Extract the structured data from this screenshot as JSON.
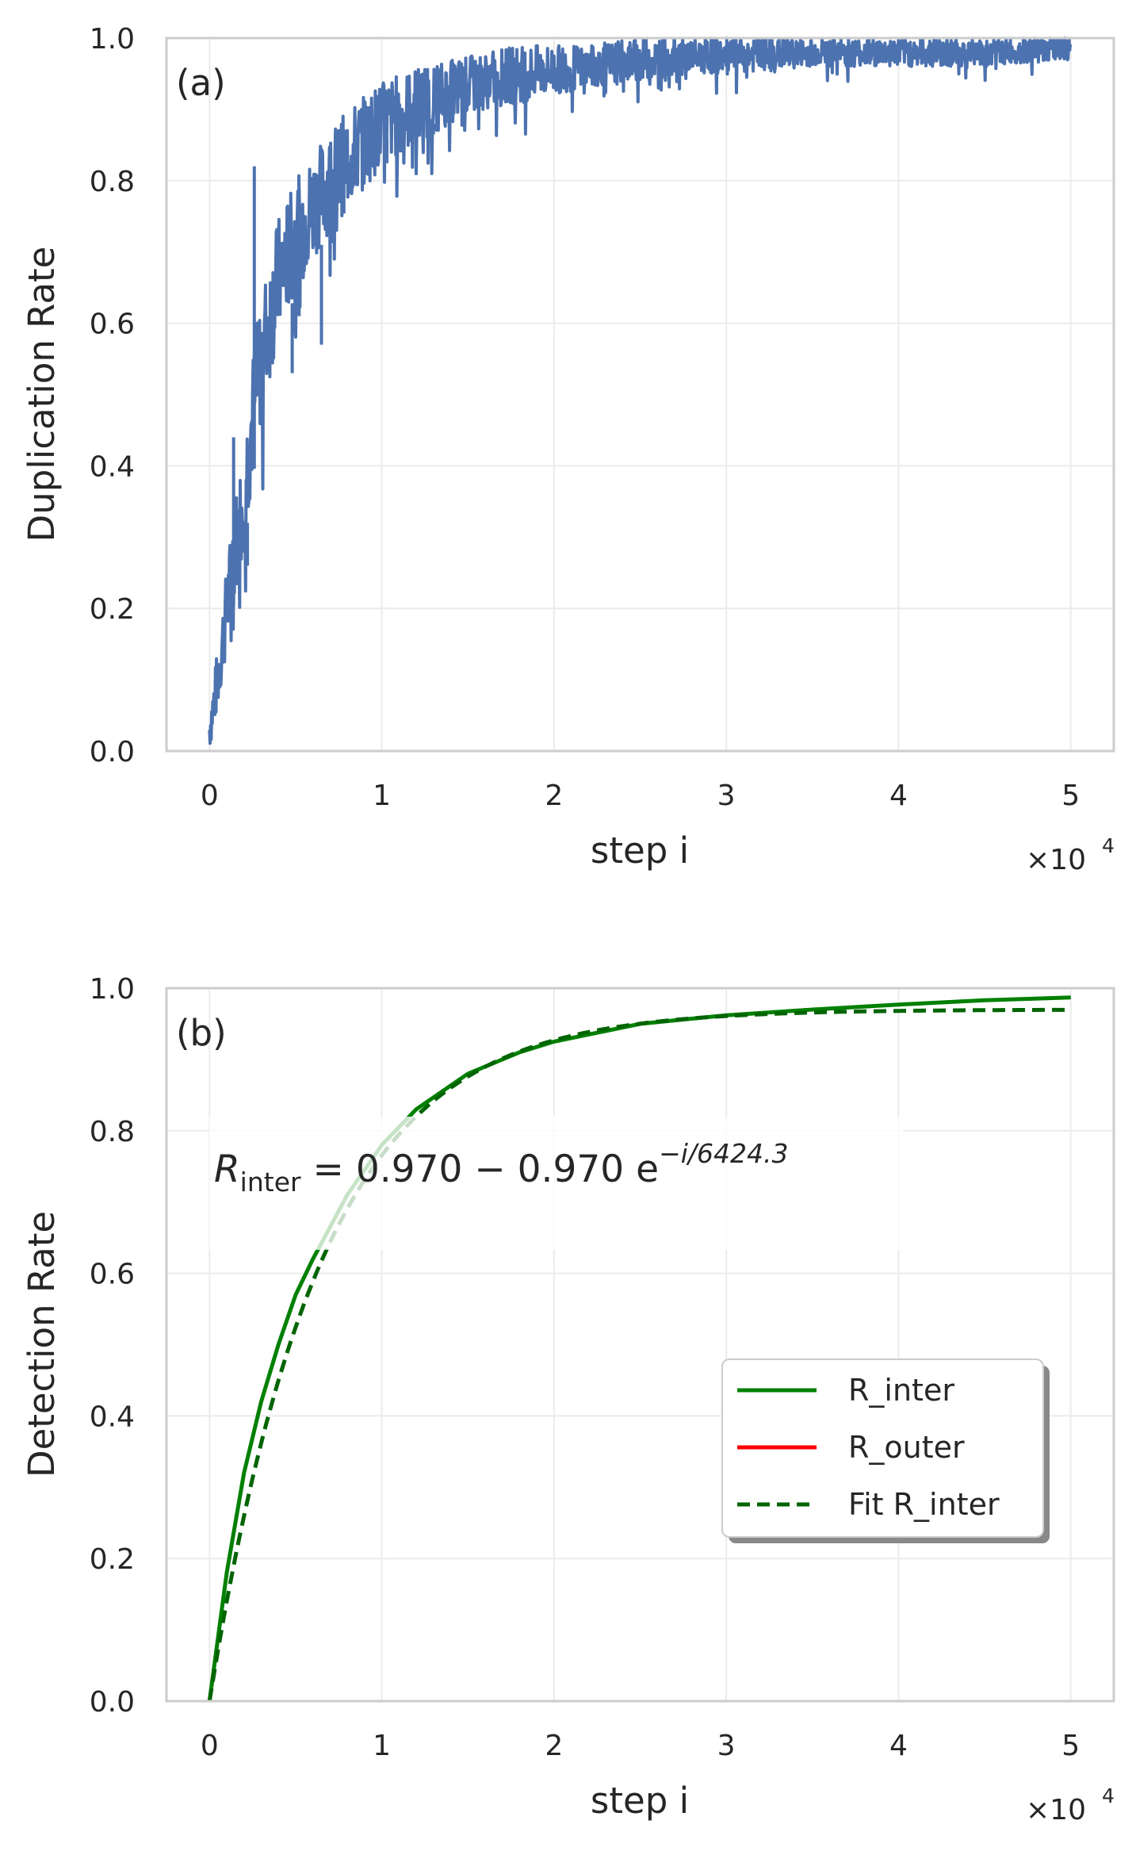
{
  "chart_data": [
    {
      "type": "line",
      "panel_label": "(a)",
      "xlabel": "step i",
      "ylabel": "Duplication Rate",
      "x_multiplier": {
        "base": "×10",
        "exponent": "4"
      },
      "xlim": [
        -2500,
        52500
      ],
      "ylim": [
        0,
        1.0
      ],
      "xticks": [
        0,
        10000,
        20000,
        30000,
        40000,
        50000
      ],
      "xtick_labels": [
        "0",
        "1",
        "2",
        "3",
        "4",
        "5"
      ],
      "yticks": [
        0,
        0.2,
        0.4,
        0.6,
        0.8,
        1.0
      ],
      "ytick_labels": [
        "0.0",
        "0.2",
        "0.4",
        "0.6",
        "0.8",
        "1.0"
      ],
      "grid": true,
      "series": [
        {
          "color": "#4c72b0",
          "noisy": true,
          "x": [
            0,
            500,
            1000,
            1500,
            2000,
            2500,
            3000,
            3500,
            4000,
            5000,
            6000,
            7000,
            8000,
            9000,
            10000,
            12000,
            14000,
            16000,
            18000,
            20000,
            22000,
            25000,
            28000,
            31000,
            35000,
            40000,
            45000,
            50000
          ],
          "y_low": [
            0.0,
            0.06,
            0.14,
            0.22,
            0.28,
            0.38,
            0.46,
            0.52,
            0.58,
            0.64,
            0.69,
            0.73,
            0.76,
            0.79,
            0.82,
            0.85,
            0.88,
            0.9,
            0.91,
            0.92,
            0.93,
            0.94,
            0.95,
            0.95,
            0.96,
            0.96,
            0.96,
            0.97
          ],
          "y_high": [
            0.06,
            0.15,
            0.26,
            0.36,
            0.44,
            0.56,
            0.64,
            0.7,
            0.75,
            0.8,
            0.84,
            0.87,
            0.9,
            0.92,
            0.94,
            0.96,
            0.97,
            0.98,
            0.99,
            0.99,
            0.99,
            1.0,
            1.0,
            1.0,
            1.0,
            1.0,
            1.0,
            1.0
          ],
          "spikes": [
            [
              2600,
              0.82
            ],
            [
              4800,
              0.53
            ],
            [
              6500,
              0.57
            ],
            [
              7800,
              0.86
            ],
            [
              10300,
              0.86
            ],
            [
              13000,
              0.88
            ],
            [
              2200,
              0.26
            ],
            [
              1400,
              0.44
            ],
            [
              5200,
              0.61
            ]
          ]
        }
      ]
    },
    {
      "type": "line",
      "panel_label": "(b)",
      "xlabel": "step i",
      "ylabel": "Detection Rate",
      "x_multiplier": {
        "base": "×10",
        "exponent": "4"
      },
      "xlim": [
        -2500,
        52500
      ],
      "ylim": [
        0,
        1.0
      ],
      "xticks": [
        0,
        10000,
        20000,
        30000,
        40000,
        50000
      ],
      "xtick_labels": [
        "0",
        "1",
        "2",
        "3",
        "4",
        "5"
      ],
      "yticks": [
        0,
        0.2,
        0.4,
        0.6,
        0.8,
        1.0
      ],
      "ytick_labels": [
        "0.0",
        "0.2",
        "0.4",
        "0.6",
        "0.8",
        "1.0"
      ],
      "grid": true,
      "equation": {
        "lhs": "R",
        "lhs_sub": "inter",
        "rhs": " = 0.970 − 0.970 e",
        "exponent": "−i/6424.3"
      },
      "legend_position": "center-right",
      "series": [
        {
          "name": "R_inter",
          "color": "#008000",
          "style": "solid",
          "x": [
            0,
            1000,
            2000,
            3000,
            4000,
            5000,
            6000,
            8000,
            10000,
            12000,
            15000,
            18000,
            20000,
            25000,
            30000,
            35000,
            40000,
            45000,
            50000
          ],
          "y": [
            0.0,
            0.18,
            0.32,
            0.42,
            0.5,
            0.57,
            0.62,
            0.71,
            0.78,
            0.83,
            0.88,
            0.91,
            0.925,
            0.95,
            0.962,
            0.97,
            0.977,
            0.983,
            0.987
          ]
        },
        {
          "name": "R_outer",
          "color": "#ff0000",
          "style": "solid",
          "x": [
            0,
            50000
          ],
          "y": [
            0.0,
            0.0
          ]
        },
        {
          "name": "Fit R_inter",
          "color": "#006400",
          "style": "dashed",
          "fit": {
            "a": 0.97,
            "tau": 6424.3
          },
          "x_range": [
            0,
            50000
          ]
        }
      ]
    }
  ]
}
